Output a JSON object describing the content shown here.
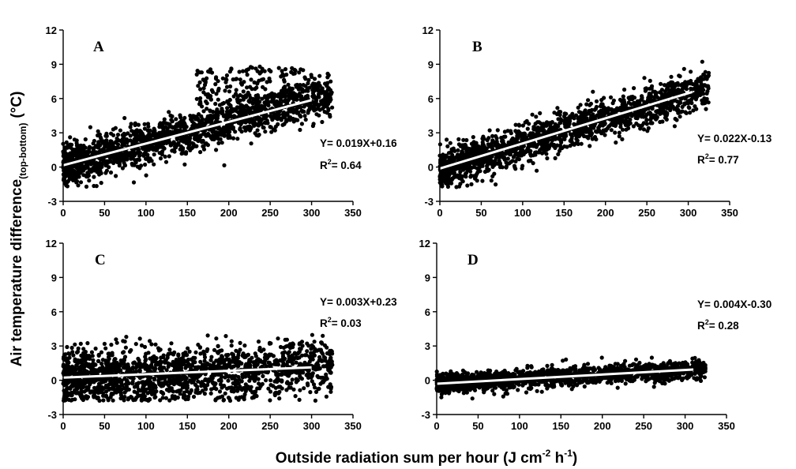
{
  "figure": {
    "ylabel_main": "Air temperature difference",
    "ylabel_sub": "(top-bottom)",
    "ylabel_unit": "(°C)",
    "xlabel_main": "Outside radiation sum per hour (J cm",
    "xlabel_exp1": "-2",
    "xlabel_mid": " h",
    "xlabel_exp2": "-1",
    "xlabel_end": ")"
  },
  "chart_data": [
    {
      "panel": "A",
      "type": "scatter",
      "xlim": [
        0,
        350
      ],
      "ylim": [
        -3,
        12
      ],
      "xticks": [
        "0",
        "50",
        "100",
        "150",
        "200",
        "250",
        "300",
        "350"
      ],
      "yticks": [
        "-3",
        "0",
        "3",
        "6",
        "9",
        "12"
      ],
      "fit": {
        "slope": 0.019,
        "intercept": 0.16,
        "x_range": [
          0,
          300
        ]
      },
      "equation": "Y= 0.019X+0.16",
      "r2_prefix": "R",
      "r2_exp": "2",
      "r2_value": "= 0.64",
      "point_color": "#000000",
      "line_color": "#ffffff"
    },
    {
      "panel": "B",
      "type": "scatter",
      "xlim": [
        0,
        350
      ],
      "ylim": [
        -3,
        12
      ],
      "xticks": [
        "0",
        "50",
        "100",
        "150",
        "200",
        "250",
        "300",
        "350"
      ],
      "yticks": [
        "-3",
        "0",
        "3",
        "6",
        "9",
        "12"
      ],
      "fit": {
        "slope": 0.022,
        "intercept": -0.13,
        "x_range": [
          0,
          305
        ]
      },
      "equation": "Y= 0.022X-0.13",
      "r2_prefix": "R",
      "r2_exp": "2",
      "r2_value": "= 0.77",
      "point_color": "#000000",
      "line_color": "#ffffff"
    },
    {
      "panel": "C",
      "type": "scatter",
      "xlim": [
        0,
        350
      ],
      "ylim": [
        -3,
        12
      ],
      "xticks": [
        "0",
        "50",
        "100",
        "150",
        "200",
        "250",
        "300",
        "350"
      ],
      "yticks": [
        "-3",
        "0",
        "3",
        "6",
        "9",
        "12"
      ],
      "fit": {
        "slope": 0.003,
        "intercept": 0.23,
        "x_range": [
          0,
          300
        ]
      },
      "equation": "Y= 0.003X+0.23",
      "r2_prefix": "R",
      "r2_exp": "2",
      "r2_value": "= 0.03",
      "point_color": "#000000",
      "line_color": "#ffffff"
    },
    {
      "panel": "D",
      "type": "scatter",
      "xlim": [
        0,
        350
      ],
      "ylim": [
        -3,
        12
      ],
      "xticks": [
        "0",
        "50",
        "100",
        "150",
        "200",
        "250",
        "300",
        "350"
      ],
      "yticks": [
        "-3",
        "0",
        "3",
        "6",
        "9",
        "12"
      ],
      "fit": {
        "slope": 0.004,
        "intercept": -0.3,
        "x_range": [
          0,
          310
        ]
      },
      "equation": "Y= 0.004X-0.30",
      "r2_prefix": "R",
      "r2_exp": "2",
      "r2_value": "= 0.28",
      "point_color": "#000000",
      "line_color": "#ffffff"
    }
  ]
}
